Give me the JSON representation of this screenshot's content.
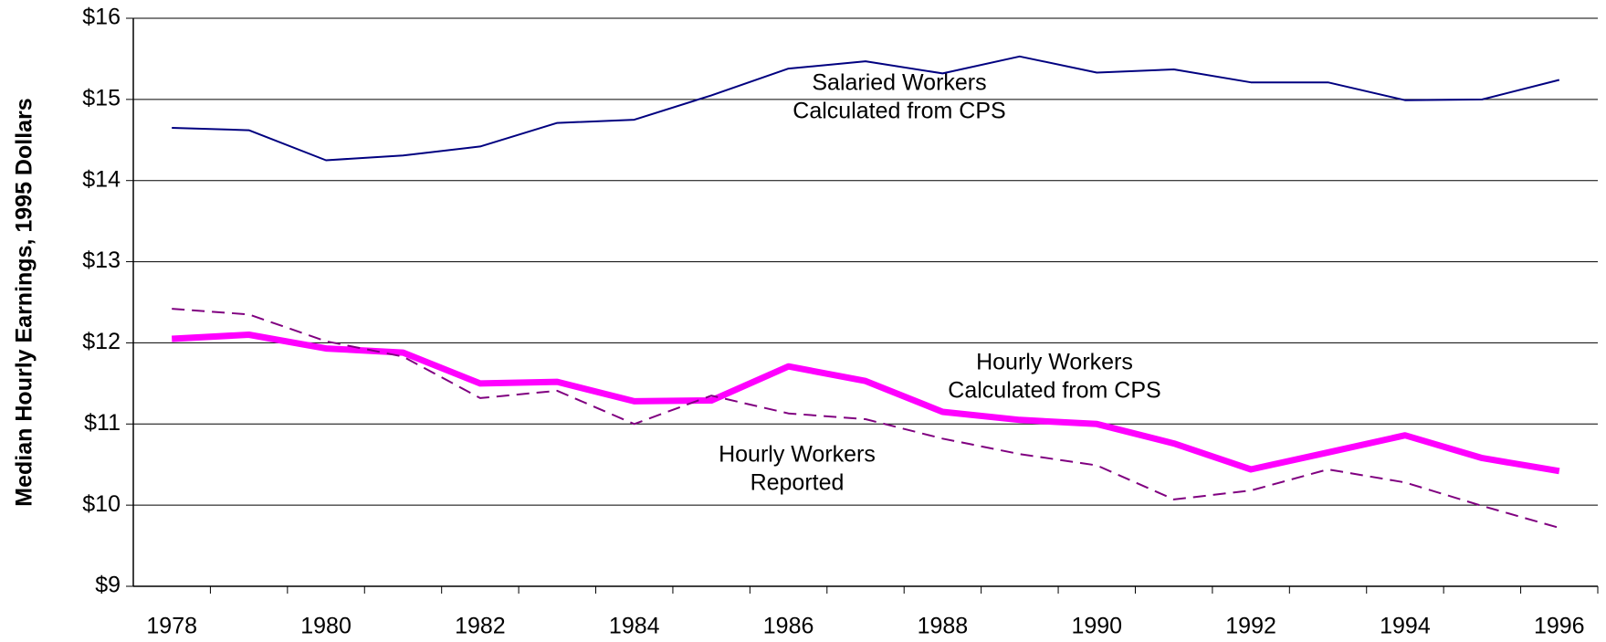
{
  "chart_data": {
    "type": "line",
    "ylabel": "Median Hourly Earnings, 1995 Dollars",
    "categories": [
      "1978",
      null,
      "1980",
      null,
      "1982",
      null,
      "1984",
      null,
      "1986",
      null,
      "1988",
      null,
      "1990",
      null,
      "1992",
      null,
      "1994",
      null,
      "1996"
    ],
    "ylim": [
      9,
      16
    ],
    "yticks": [
      {
        "value": 9,
        "label": "$9"
      },
      {
        "value": 10,
        "label": "$10"
      },
      {
        "value": 11,
        "label": "$11"
      },
      {
        "value": 12,
        "label": "$12"
      },
      {
        "value": 13,
        "label": "$13"
      },
      {
        "value": 14,
        "label": "$14"
      },
      {
        "value": 15,
        "label": "$15"
      },
      {
        "value": 16,
        "label": "$16"
      }
    ],
    "grid": true,
    "series": [
      {
        "name": [
          "Salaried Workers",
          "Calculated from CPS"
        ],
        "color": "#000080",
        "width": 2,
        "dash": false,
        "values": [
          14.65,
          14.62,
          14.25,
          14.31,
          14.42,
          14.71,
          14.75,
          15.05,
          15.38,
          15.47,
          15.32,
          15.53,
          15.33,
          15.37,
          15.21,
          15.21,
          14.99,
          15.0,
          15.24
        ]
      },
      {
        "name": [
          "Hourly Workers",
          "Calculated from CPS"
        ],
        "color": "#ff00ff",
        "width": 7,
        "dash": false,
        "values": [
          12.05,
          12.1,
          11.93,
          11.88,
          11.5,
          11.52,
          11.28,
          11.29,
          11.71,
          11.53,
          11.15,
          11.05,
          11.0,
          10.76,
          10.44,
          10.65,
          10.86,
          10.58,
          10.42
        ]
      },
      {
        "name": [
          "Hourly Workers",
          "Reported"
        ],
        "color": "#800080",
        "width": 2,
        "dash": true,
        "values": [
          12.42,
          12.35,
          12.02,
          11.83,
          11.32,
          11.41,
          11.0,
          11.35,
          11.13,
          11.06,
          10.82,
          10.63,
          10.49,
          10.07,
          10.18,
          10.44,
          10.28,
          9.99,
          9.72
        ]
      }
    ]
  }
}
